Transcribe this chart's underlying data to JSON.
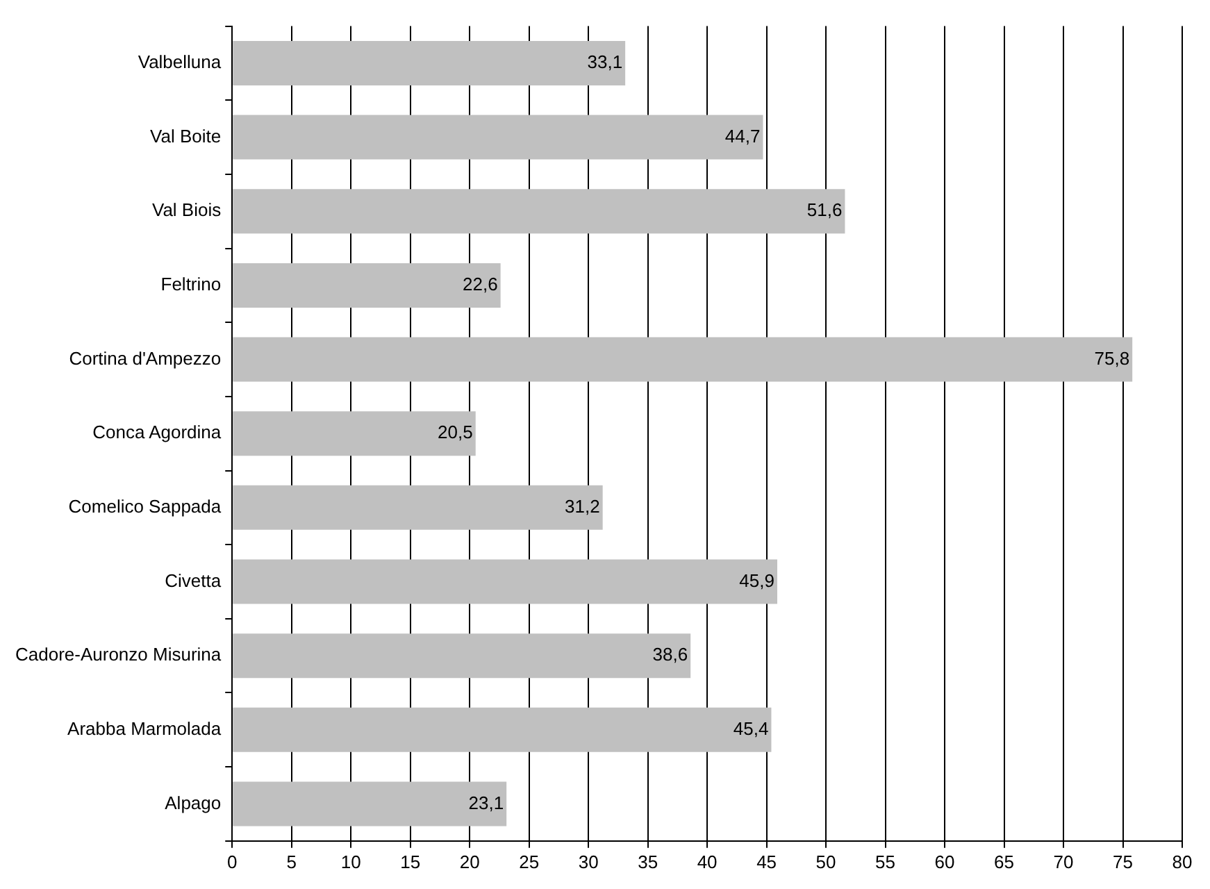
{
  "chart_data": {
    "type": "bar",
    "orientation": "horizontal",
    "categories": [
      "Valbelluna",
      "Val Boite",
      "Val Biois",
      "Feltrino",
      "Cortina d'Ampezzo",
      "Conca Agordina",
      "Comelico Sappada",
      "Civetta",
      "Cadore-Auronzo Misurina",
      "Arabba Marmolada",
      "Alpago"
    ],
    "values": [
      33.1,
      44.7,
      51.6,
      22.6,
      75.8,
      20.5,
      31.2,
      45.9,
      38.6,
      45.4,
      23.1
    ],
    "value_labels": [
      "33,1",
      "44,7",
      "51,6",
      "22,6",
      "75,8",
      "20,5",
      "31,2",
      "45,9",
      "38,6",
      "45,4",
      "23,1"
    ],
    "color": "#c0c0c0",
    "xlim": [
      0,
      80
    ],
    "xticks": [
      0,
      5,
      10,
      15,
      20,
      25,
      30,
      35,
      40,
      45,
      50,
      55,
      60,
      65,
      70,
      75,
      80
    ],
    "grid": "x",
    "legend": false
  }
}
